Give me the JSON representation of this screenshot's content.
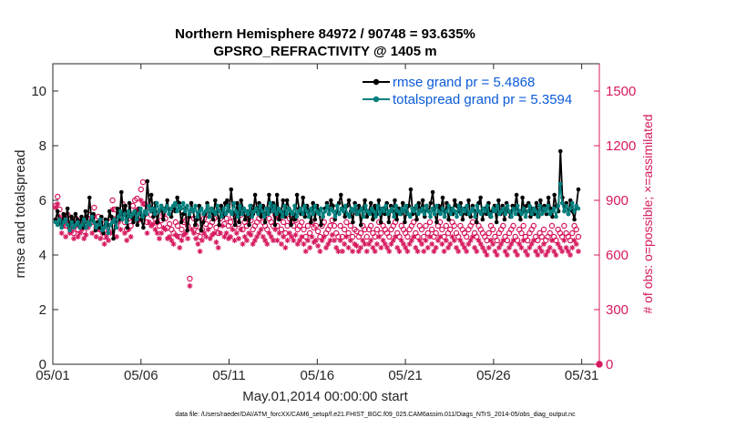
{
  "chart_data": {
    "type": "line",
    "title": "Northern Hemisphere 84972 / 90748 = 93.635%",
    "subtitle": "GPSRO_REFRACTIVITY @ 1405 m",
    "xlabel": "May.01,2014 00:00:00 start",
    "ylabel": "rmse and totalspread",
    "ylabel_right": "# of obs: o=possible; ×=assimilated",
    "x_tick_labels": [
      "05/01",
      "05/06",
      "05/11",
      "05/16",
      "05/21",
      "05/26",
      "05/31"
    ],
    "x_ticks_day": [
      0,
      5,
      10,
      15,
      20,
      25,
      30
    ],
    "x_range_days": [
      0,
      31
    ],
    "y_ticks": [
      "0",
      "2",
      "4",
      "6",
      "8",
      "10"
    ],
    "y_tick_values": [
      0,
      2,
      4,
      6,
      8,
      10
    ],
    "ylim": [
      0,
      11
    ],
    "y2_ticks": [
      "0",
      "300",
      "600",
      "900",
      "1200",
      "1500"
    ],
    "y2_tick_values": [
      0,
      300,
      600,
      900,
      1200,
      1500
    ],
    "y2lim": [
      0,
      1650
    ],
    "footnote": "data file: /Users/raeder/DAI/ATM_forcXX/CAM6_setup/f.e21.FHIST_BGC.f09_025.CAM6assim.011/Diags_NTrS_2014-05/obs_diag_output.nc",
    "legend": [
      "rmse grand pr = 5.4868",
      "totalspread grand pr = 5.3594"
    ],
    "series": [
      {
        "name": "rmse",
        "color": "#000000",
        "axis": "left",
        "values": [
          5.3,
          5.6,
          5.2,
          5.1,
          5.5,
          5.3,
          5.7,
          5.0,
          5.4,
          5.2,
          5.5,
          5.3,
          5.1,
          5.4,
          5.0,
          5.6,
          5.2,
          6.1,
          5.3,
          5.5,
          4.9,
          5.2,
          5.0,
          5.4,
          4.8,
          5.3,
          5.1,
          5.6,
          5.4,
          4.6,
          5.2,
          5.7,
          5.3,
          6.3,
          5.5,
          5.8,
          5.0,
          5.9,
          5.4,
          5.2,
          5.6,
          5.1,
          5.7,
          5.3,
          5.0,
          5.5,
          6.7,
          5.8,
          6.2,
          5.4,
          5.9,
          5.2,
          5.6,
          5.8,
          5.3,
          5.7,
          6.0,
          5.5,
          5.4,
          5.8,
          5.6,
          6.1,
          5.9,
          5.2,
          5.5,
          5.7,
          4.9,
          5.4,
          5.9,
          5.6,
          5.1,
          5.3,
          5.8,
          4.9,
          5.2,
          5.5,
          5.9,
          5.4,
          5.7,
          5.3,
          6.0,
          5.6,
          5.1,
          5.8,
          5.4,
          5.9,
          6.0,
          5.6,
          6.4,
          5.5,
          5.1,
          5.9,
          5.2,
          6.0,
          5.7,
          5.3,
          5.6,
          5.1,
          5.8,
          5.5,
          6.2,
          5.6,
          5.9,
          5.4,
          5.8,
          5.2,
          5.7,
          6.2,
          5.6,
          5.9,
          5.1,
          6.2,
          5.3,
          5.6,
          6.0,
          5.4,
          6.0,
          5.7,
          5.1,
          5.5,
          5.3,
          6.2,
          5.7,
          5.5,
          6.1,
          5.4,
          5.8,
          5.6,
          5.2,
          5.9,
          5.3,
          5.8,
          5.6,
          5.1,
          5.4,
          5.7,
          5.9,
          5.5,
          6.0,
          5.8,
          5.3,
          5.6,
          5.9,
          6.2,
          5.7,
          5.4,
          5.8,
          6.0,
          5.6,
          5.2,
          5.9,
          5.5,
          5.8,
          5.1,
          5.7,
          6.0,
          5.4,
          5.6,
          5.9,
          5.3,
          5.8,
          5.5,
          6.0,
          5.2,
          5.7,
          5.5,
          5.9,
          5.2,
          5.8,
          5.6,
          6.0,
          5.3,
          5.7,
          5.5,
          5.9,
          5.2,
          5.6,
          5.8,
          6.4,
          5.5,
          5.7,
          5.3,
          5.9,
          5.6,
          6.0,
          5.4,
          5.8,
          5.6,
          5.9,
          6.3,
          5.5,
          5.2,
          5.8,
          5.6,
          6.1,
          5.4,
          5.9,
          5.3,
          5.7,
          5.5,
          6.0,
          5.8,
          5.6,
          5.9,
          5.3,
          5.7,
          5.5,
          6.0,
          5.4,
          5.8,
          5.6,
          5.2,
          5.9,
          6.1,
          5.3,
          5.7,
          5.5,
          5.9,
          5.4,
          5.6,
          5.8,
          5.2,
          6.0,
          5.5,
          5.8,
          5.3,
          5.9,
          5.6,
          5.4,
          5.8,
          5.7,
          6.2,
          5.5,
          5.3,
          6.1,
          5.6,
          5.8,
          5.9,
          5.4,
          5.7,
          5.5,
          5.9,
          5.4,
          6.0,
          5.6,
          5.8,
          5.5,
          6.1,
          5.7,
          5.4,
          6.2,
          5.8,
          5.6,
          7.8,
          6.1,
          5.6,
          5.9,
          5.5,
          6.0,
          5.6,
          5.3,
          5.8,
          6.4
        ]
      },
      {
        "name": "totalspread",
        "color": "#00807f",
        "axis": "left",
        "values": [
          5.2,
          5.1,
          5.3,
          5.0,
          5.2,
          5.3,
          5.1,
          4.9,
          5.2,
          5.0,
          5.1,
          5.2,
          5.0,
          5.1,
          5.3,
          5.0,
          5.2,
          5.1,
          5.4,
          5.2,
          5.0,
          5.1,
          5.3,
          4.9,
          5.0,
          5.2,
          4.8,
          5.1,
          5.2,
          5.3,
          5.0,
          5.4,
          5.6,
          5.3,
          5.5,
          5.2,
          5.6,
          5.4,
          5.5,
          5.6,
          5.3,
          5.5,
          5.7,
          5.4,
          5.6,
          5.5,
          5.8,
          5.6,
          5.7,
          5.5,
          5.9,
          5.6,
          5.8,
          5.7,
          5.6,
          5.8,
          5.5,
          5.7,
          5.8,
          5.9,
          5.6,
          5.8,
          5.7,
          5.9,
          5.6,
          5.8,
          5.5,
          5.7,
          5.6,
          5.8,
          5.4,
          5.6,
          5.7,
          5.5,
          5.6,
          5.8,
          5.4,
          5.7,
          5.6,
          5.5,
          5.8,
          5.6,
          5.4,
          5.7,
          5.5,
          5.8,
          5.6,
          5.5,
          5.9,
          5.6,
          5.4,
          5.8,
          5.5,
          5.7,
          5.6,
          5.5,
          5.8,
          5.4,
          5.6,
          5.7,
          5.5,
          5.8,
          5.6,
          5.4,
          5.7,
          5.5,
          5.9,
          5.6,
          5.8,
          5.5,
          5.7,
          5.6,
          5.4,
          5.8,
          5.5,
          5.7,
          5.6,
          5.5,
          5.8,
          5.4,
          5.6,
          5.7,
          5.5,
          5.8,
          5.6,
          5.4,
          5.7,
          5.5,
          5.8,
          5.6,
          5.5,
          5.7,
          5.4,
          5.6,
          5.8,
          5.5,
          5.7,
          5.6,
          5.4,
          5.8,
          5.5,
          5.7,
          5.6,
          5.8,
          5.5,
          5.4,
          5.7,
          5.6,
          5.8,
          5.5,
          5.6,
          5.7,
          5.4,
          5.8,
          5.6,
          5.5,
          5.7,
          5.6,
          5.4,
          5.8,
          5.5,
          5.7,
          5.6,
          5.8,
          5.5,
          5.6,
          5.7,
          5.4,
          5.8,
          5.6,
          5.5,
          5.7,
          5.6,
          5.8,
          5.5,
          5.4,
          5.7,
          5.6,
          5.8,
          5.5,
          5.6,
          5.7,
          5.5,
          5.8,
          5.6,
          5.4,
          5.7,
          5.5,
          5.8,
          5.6,
          5.5,
          5.7,
          5.4,
          5.6,
          5.8,
          5.5,
          5.7,
          5.6,
          5.4,
          5.8,
          5.5,
          5.7,
          5.6,
          5.8,
          5.5,
          5.6,
          5.7,
          5.4,
          5.8,
          5.6,
          5.5,
          5.7,
          5.6,
          5.8,
          5.5,
          5.4,
          5.7,
          5.6,
          5.8,
          5.5,
          5.6,
          5.7,
          5.5,
          5.8,
          5.6,
          5.4,
          5.7,
          5.5,
          5.8,
          5.6,
          5.5,
          5.7,
          5.4,
          5.6,
          5.8,
          5.5,
          5.7,
          5.6,
          5.4,
          5.8,
          5.5,
          5.7,
          5.6,
          5.8,
          5.5,
          5.6,
          5.7,
          5.4,
          5.8,
          6.6,
          5.9,
          5.6,
          5.8,
          5.5,
          5.7,
          5.9,
          5.6,
          5.8,
          5.7
        ]
      },
      {
        "name": "possible",
        "color": "#d6185f",
        "axis": "right",
        "marker": "o",
        "values": [
          870,
          920,
          850,
          780,
          800,
          760,
          820,
          750,
          770,
          720,
          800,
          740,
          760,
          790,
          730,
          770,
          800,
          820,
          780,
          860,
          750,
          810,
          740,
          770,
          700,
          760,
          730,
          780,
          900,
          850,
          760,
          830,
          800,
          880,
          780,
          740,
          800,
          760,
          870,
          900,
          910,
          850,
          960,
          1000,
          880,
          780,
          860,
          820,
          840,
          800,
          780,
          760,
          790,
          820,
          800,
          750,
          770,
          740,
          720,
          780,
          760,
          700,
          740,
          780,
          790,
          760,
          470,
          820,
          800,
          760,
          730,
          700,
          740,
          800,
          770,
          820,
          760,
          780,
          800,
          750,
          720,
          800,
          840,
          770,
          800,
          760,
          780,
          810,
          750,
          800,
          770,
          820,
          740,
          780,
          760,
          800,
          790,
          740,
          760,
          780,
          800,
          820,
          780,
          760,
          740,
          800,
          780,
          760,
          820,
          760,
          800,
          740,
          780,
          720,
          760,
          800,
          780,
          760,
          790,
          740,
          760,
          780,
          740,
          700,
          760,
          720,
          780,
          750,
          760,
          730,
          700,
          760,
          780,
          720,
          740,
          760,
          790,
          760,
          720,
          700,
          760,
          700,
          740,
          780,
          720,
          760,
          700,
          740,
          730,
          700,
          720,
          760,
          740,
          700,
          740,
          760,
          720,
          700,
          740,
          780,
          720,
          760,
          740,
          720,
          700,
          740,
          760,
          780,
          720,
          700,
          760,
          740,
          720,
          700,
          740,
          760,
          780,
          720,
          700,
          760,
          740,
          700,
          760,
          720,
          780,
          740,
          700,
          720,
          760,
          780,
          740,
          700,
          760,
          720,
          740,
          780,
          760,
          720,
          700,
          760,
          740,
          720,
          700,
          740,
          760,
          780,
          720,
          700,
          760,
          740,
          720,
          700,
          680,
          720,
          760,
          740,
          700,
          680,
          720,
          740,
          760,
          700,
          680,
          720,
          740,
          760,
          700,
          680,
          740,
          720,
          760,
          700,
          680,
          720,
          740,
          760,
          700,
          680,
          720,
          700,
          740,
          680,
          700,
          720,
          760,
          700,
          680,
          740,
          720,
          700,
          760,
          720,
          700,
          680,
          720,
          760,
          740,
          700
        ]
      },
      {
        "name": "assimilated",
        "color": "#d6185f",
        "axis": "right",
        "marker": "*",
        "values": [
          860,
          880,
          810,
          720,
          760,
          700,
          780,
          720,
          730,
          690,
          760,
          700,
          720,
          740,
          690,
          710,
          750,
          780,
          720,
          810,
          700,
          740,
          690,
          720,
          660,
          700,
          680,
          720,
          850,
          800,
          700,
          780,
          740,
          820,
          720,
          680,
          740,
          700,
          800,
          840,
          850,
          790,
          900,
          880,
          820,
          720,
          780,
          760,
          770,
          740,
          720,
          690,
          720,
          750,
          740,
          690,
          700,
          680,
          660,
          710,
          700,
          640,
          680,
          710,
          720,
          690,
          430,
          740,
          720,
          690,
          660,
          620,
          680,
          720,
          700,
          740,
          690,
          710,
          720,
          670,
          640,
          720,
          760,
          700,
          720,
          690,
          700,
          740,
          680,
          720,
          690,
          740,
          660,
          700,
          680,
          720,
          710,
          660,
          680,
          700,
          720,
          740,
          700,
          680,
          660,
          720,
          700,
          680,
          740,
          680,
          720,
          660,
          700,
          640,
          680,
          720,
          700,
          680,
          710,
          660,
          680,
          700,
          660,
          620,
          680,
          640,
          700,
          670,
          680,
          650,
          620,
          680,
          700,
          640,
          660,
          680,
          710,
          680,
          640,
          620,
          680,
          620,
          660,
          700,
          640,
          680,
          620,
          660,
          650,
          620,
          640,
          680,
          660,
          620,
          660,
          680,
          640,
          620,
          660,
          700,
          640,
          680,
          660,
          640,
          620,
          660,
          680,
          700,
          640,
          620,
          680,
          660,
          640,
          620,
          660,
          680,
          700,
          640,
          620,
          680,
          660,
          620,
          680,
          640,
          700,
          660,
          620,
          640,
          680,
          700,
          660,
          620,
          680,
          640,
          660,
          700,
          680,
          640,
          620,
          680,
          660,
          640,
          620,
          660,
          680,
          700,
          640,
          620,
          680,
          660,
          640,
          620,
          600,
          640,
          680,
          660,
          620,
          600,
          640,
          660,
          680,
          620,
          600,
          640,
          660,
          680,
          620,
          600,
          660,
          640,
          680,
          620,
          600,
          640,
          660,
          680,
          620,
          600,
          640,
          620,
          660,
          600,
          620,
          640,
          680,
          620,
          600,
          660,
          640,
          620,
          680,
          640,
          620,
          600,
          640,
          680,
          660,
          620
        ]
      }
    ]
  }
}
